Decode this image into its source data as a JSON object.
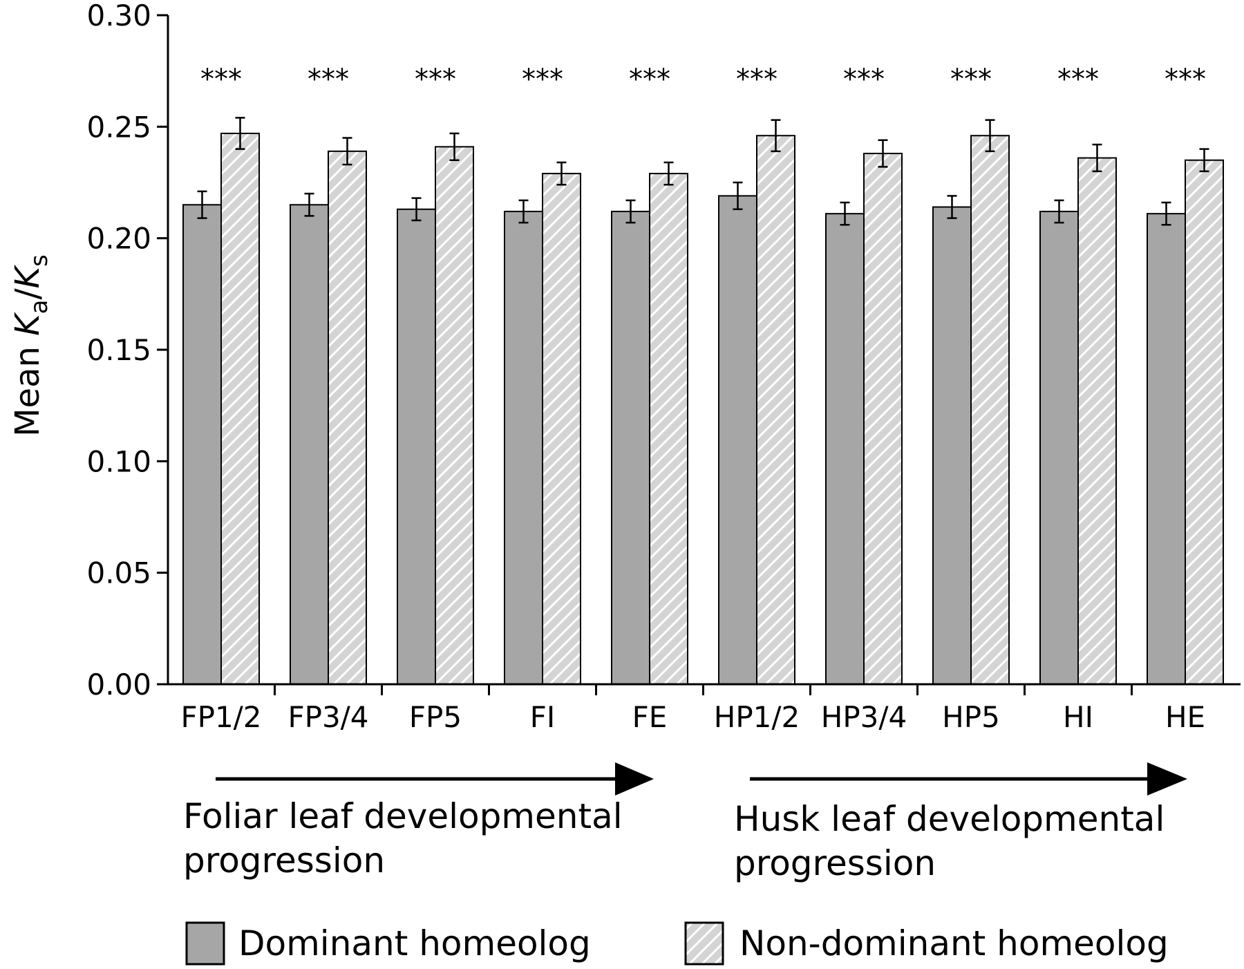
{
  "chart_data": {
    "type": "bar",
    "ylabel": {
      "prefix": "Mean ",
      "k1": "K",
      "sub1": "a",
      "slash": "/",
      "k2": "K",
      "sub2": "s"
    },
    "ylim": [
      0,
      0.3
    ],
    "yticks": [
      "0.00",
      "0.05",
      "0.10",
      "0.15",
      "0.20",
      "0.25",
      "0.30"
    ],
    "categories": [
      "FP1/2",
      "FP3/4",
      "FP5",
      "FI",
      "FE",
      "HP1/2",
      "HP3/4",
      "HP5",
      "HI",
      "HE"
    ],
    "series": [
      {
        "name": "Dominant homeolog",
        "color": "#a6a6a6",
        "pattern": "solid",
        "values": [
          0.215,
          0.215,
          0.213,
          0.212,
          0.212,
          0.219,
          0.211,
          0.214,
          0.212,
          0.211
        ],
        "errors": [
          0.006,
          0.005,
          0.005,
          0.005,
          0.005,
          0.006,
          0.005,
          0.005,
          0.005,
          0.005
        ]
      },
      {
        "name": "Non-dominant homeolog",
        "color": "#d4d4d4",
        "pattern": "hatched",
        "values": [
          0.247,
          0.239,
          0.241,
          0.229,
          0.229,
          0.246,
          0.238,
          0.246,
          0.236,
          0.235
        ],
        "errors": [
          0.007,
          0.006,
          0.006,
          0.005,
          0.005,
          0.007,
          0.006,
          0.007,
          0.006,
          0.005
        ]
      }
    ],
    "significance": [
      "***",
      "***",
      "***",
      "***",
      "***",
      "***",
      "***",
      "***",
      "***",
      "***"
    ],
    "progression": [
      {
        "line1": "Foliar leaf developmental",
        "line2": "progression"
      },
      {
        "line1": "Husk leaf developmental",
        "line2": "progression"
      }
    ],
    "legend_position": "bottom",
    "grid": false
  }
}
